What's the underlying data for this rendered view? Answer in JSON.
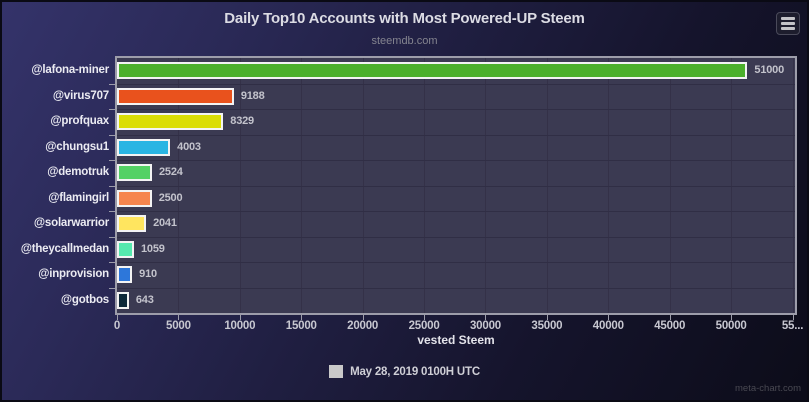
{
  "header": {
    "title": "Daily Top10 Accounts with Most Powered-UP Steem",
    "subtitle": "steemdb.com"
  },
  "menu_button": {
    "icon": "hamburger-icon"
  },
  "chart_data": {
    "type": "bar",
    "orientation": "horizontal",
    "title": "Daily Top10 Accounts with Most Powered-UP Steem",
    "subtitle": "steemdb.com",
    "xlabel": "vested Steem",
    "categories": [
      "@lafona-miner",
      "@virus707",
      "@profquax",
      "@chungsu1",
      "@demotruk",
      "@flamingirl",
      "@solarwarrior",
      "@theycallmedan",
      "@inprovision",
      "@gotbos"
    ],
    "values": [
      51000,
      9188,
      8329,
      4003,
      2524,
      2500,
      2041,
      1059,
      910,
      643
    ],
    "bar_colors": [
      "#4cb02c",
      "#e9521d",
      "#dbdd04",
      "#29b5e3",
      "#54d165",
      "#f6854d",
      "#ffe55f",
      "#55e9ae",
      "#2d77da",
      "#0d2838"
    ],
    "value_labels": [
      "51000",
      "9188",
      "8329",
      "4003",
      "2524",
      "2500",
      "2041",
      "1059",
      "910",
      "643"
    ],
    "xlim": [
      0,
      55200
    ],
    "xticks": [
      0,
      5000,
      10000,
      15000,
      20000,
      25000,
      30000,
      35000,
      40000,
      45000,
      50000,
      55000
    ],
    "xtick_labels": [
      "0",
      "5000",
      "10000",
      "15000",
      "20000",
      "25000",
      "30000",
      "35000",
      "40000",
      "45000",
      "50000",
      "55..."
    ],
    "grid": true,
    "legend": {
      "position": "bottom",
      "label": "May 28, 2019 0100H UTC",
      "swatch_color": "#c9c9c9"
    },
    "plot_bg": "#3b3a52",
    "bar_border_color": "#f3f3f3"
  },
  "watermark": "meta-chart.com"
}
